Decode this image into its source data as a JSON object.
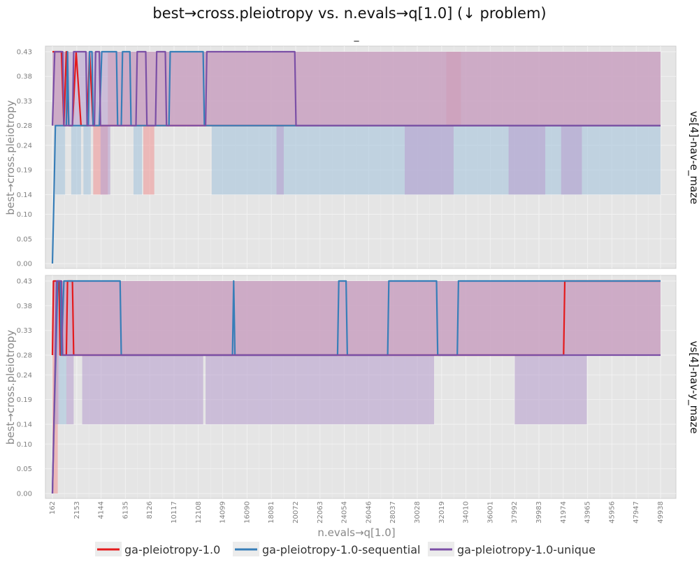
{
  "title": "best→cross.pleiotropy vs. n.evals→q[1.0] (↓ problem)",
  "subtitle": "_",
  "xlabel": "n.evals→q[1.0]",
  "ylabel": "best→cross.pleiotropy",
  "colors": {
    "panel_bg": "#e5e5e5",
    "grid": "#f2f2f2",
    "tick_text": "#7f7f7f",
    "series": [
      "#e41a1c",
      "#377eb8",
      "#7b4fa6"
    ],
    "band_fill": [
      "#ef9a9a",
      "#a6c4dc",
      "#b9a1cf"
    ]
  },
  "legend": {
    "position": "bottom",
    "items": [
      "ga-pleiotropy-1.0",
      "ga-pleiotropy-1.0-sequential",
      "ga-pleiotropy-1.0-unique"
    ]
  },
  "chart_data": {
    "type": "line",
    "xticks": [
      162,
      2153,
      4144,
      6135,
      8126,
      10117,
      12108,
      14099,
      16090,
      18081,
      20072,
      22063,
      24054,
      26046,
      28037,
      30028,
      32019,
      34010,
      36001,
      37992,
      39983,
      41974,
      43965,
      45956,
      47947,
      49938
    ],
    "xlim": [
      162,
      49938
    ],
    "yticks": [
      "0.00",
      "0.05",
      "0.10",
      "0.14",
      "0.19",
      "0.24",
      "0.28",
      "0.33",
      "0.38",
      "0.43"
    ],
    "ylim": [
      0,
      0.43
    ],
    "grid": true,
    "panels": [
      {
        "facet_label": "vs[4]-nav-e_maze",
        "series": [
          {
            "name": "ga-pleiotropy-1.0",
            "line": [
              [
                162,
                0.43
              ],
              [
                300,
                0.43
              ],
              [
                500,
                0.43
              ],
              [
                900,
                0.43
              ],
              [
                1100,
                0.28
              ],
              [
                1300,
                0.43
              ],
              [
                1500,
                0.28
              ],
              [
                1800,
                0.28
              ],
              [
                2100,
                0.43
              ],
              [
                2500,
                0.28
              ],
              [
                3000,
                0.28
              ],
              [
                3200,
                0.43
              ],
              [
                3500,
                0.28
              ],
              [
                4200,
                0.28
              ],
              [
                4500,
                0.28
              ],
              [
                5500,
                0.28
              ],
              [
                6500,
                0.28
              ],
              [
                7500,
                0.28
              ],
              [
                8500,
                0.28
              ],
              [
                9500,
                0.28
              ],
              [
                10500,
                0.28
              ],
              [
                11500,
                0.28
              ],
              [
                12500,
                0.28
              ],
              [
                13500,
                0.28
              ],
              [
                20000,
                0.28
              ],
              [
                49938,
                0.28
              ]
            ],
            "bands": [
              {
                "x": [
                  162,
                  800
                ],
                "low": 0.28,
                "high": 0.43
              },
              {
                "x": [
                  800,
                  1500
                ],
                "low": 0.28,
                "high": 0.43
              },
              {
                "x": [
                  3500,
                  4700
                ],
                "low": 0.14,
                "high": 0.28
              },
              {
                "x": [
                  7600,
                  8500
                ],
                "low": 0.14,
                "high": 0.28
              },
              {
                "x": [
                  4700,
                  49938
                ],
                "low": 0.28,
                "high": 0.43
              }
            ],
            "extra_bands": [
              {
                "x": [
                  32400,
                  33600
                ],
                "low": 0.28,
                "high": 0.43
              }
            ]
          },
          {
            "name": "ga-pleiotropy-1.0-sequential",
            "line": [
              [
                162,
                0.0
              ],
              [
                300,
                0.15
              ],
              [
                400,
                0.28
              ],
              [
                1300,
                0.28
              ],
              [
                1400,
                0.43
              ],
              [
                1500,
                0.28
              ],
              [
                3100,
                0.28
              ],
              [
                3200,
                0.43
              ],
              [
                3400,
                0.43
              ],
              [
                3500,
                0.28
              ],
              [
                4000,
                0.28
              ],
              [
                4200,
                0.43
              ],
              [
                5400,
                0.43
              ],
              [
                5500,
                0.28
              ],
              [
                5800,
                0.28
              ],
              [
                5900,
                0.43
              ],
              [
                6500,
                0.43
              ],
              [
                6600,
                0.28
              ],
              [
                9700,
                0.28
              ],
              [
                9800,
                0.43
              ],
              [
                12500,
                0.43
              ],
              [
                12600,
                0.28
              ],
              [
                49938,
                0.28
              ]
            ],
            "bands": [
              {
                "x": [
                  400,
                  1200
                ],
                "low": 0.14,
                "high": 0.28
              },
              {
                "x": [
                  1700,
                  2500
                ],
                "low": 0.14,
                "high": 0.28
              },
              {
                "x": [
                  2700,
                  3300
                ],
                "low": 0.14,
                "high": 0.28
              },
              {
                "x": [
                  6800,
                  7500
                ],
                "low": 0.14,
                "high": 0.28
              },
              {
                "x": [
                  13200,
                  49938
                ],
                "low": 0.14,
                "high": 0.28
              }
            ],
            "extra_bands": []
          },
          {
            "name": "ga-pleiotropy-1.0-unique",
            "line": [
              [
                162,
                0.28
              ],
              [
                350,
                0.43
              ],
              [
                1000,
                0.43
              ],
              [
                1100,
                0.28
              ],
              [
                1800,
                0.28
              ],
              [
                1900,
                0.43
              ],
              [
                2900,
                0.43
              ],
              [
                3000,
                0.28
              ],
              [
                3600,
                0.28
              ],
              [
                3700,
                0.43
              ],
              [
                4000,
                0.43
              ],
              [
                4100,
                0.28
              ],
              [
                7000,
                0.28
              ],
              [
                7100,
                0.43
              ],
              [
                7800,
                0.43
              ],
              [
                7900,
                0.28
              ],
              [
                8600,
                0.28
              ],
              [
                8700,
                0.43
              ],
              [
                9400,
                0.43
              ],
              [
                9500,
                0.28
              ],
              [
                12700,
                0.28
              ],
              [
                12800,
                0.43
              ],
              [
                20000,
                0.43
              ],
              [
                20100,
                0.28
              ],
              [
                49938,
                0.28
              ]
            ],
            "bands": [
              {
                "x": [
                  162,
                  49938
                ],
                "low": 0.28,
                "high": 0.43
              },
              {
                "x": [
                  4100,
                  4900
                ],
                "low": 0.14,
                "high": 0.28
              },
              {
                "x": [
                  18500,
                  19100
                ],
                "low": 0.14,
                "high": 0.28
              },
              {
                "x": [
                  29000,
                  33000
                ],
                "low": 0.14,
                "high": 0.28
              },
              {
                "x": [
                  37500,
                  40500
                ],
                "low": 0.14,
                "high": 0.28
              },
              {
                "x": [
                  41800,
                  43500
                ],
                "low": 0.14,
                "high": 0.28
              }
            ],
            "extra_bands": []
          }
        ]
      },
      {
        "facet_label": "vs[4]-nav-y_maze",
        "series": [
          {
            "name": "ga-pleiotropy-1.0",
            "line": [
              [
                162,
                0.28
              ],
              [
                250,
                0.43
              ],
              [
                700,
                0.43
              ],
              [
                800,
                0.28
              ],
              [
                1300,
                0.28
              ],
              [
                1400,
                0.43
              ],
              [
                1800,
                0.43
              ],
              [
                1900,
                0.28
              ],
              [
                42000,
                0.28
              ],
              [
                42100,
                0.43
              ],
              [
                49938,
                0.43
              ]
            ],
            "bands": [
              {
                "x": [
                  162,
                  600
                ],
                "low": 0.0,
                "high": 0.43
              },
              {
                "x": [
                  600,
                  49938
                ],
                "low": 0.28,
                "high": 0.43
              }
            ],
            "extra_bands": []
          },
          {
            "name": "ga-pleiotropy-1.0-sequential",
            "line": [
              [
                162,
                0.0
              ],
              [
                350,
                0.2
              ],
              [
                600,
                0.43
              ],
              [
                800,
                0.43
              ],
              [
                900,
                0.28
              ],
              [
                1100,
                0.43
              ],
              [
                5700,
                0.43
              ],
              [
                5800,
                0.28
              ],
              [
                14900,
                0.28
              ],
              [
                15000,
                0.43
              ],
              [
                15100,
                0.28
              ],
              [
                23500,
                0.28
              ],
              [
                23600,
                0.43
              ],
              [
                24200,
                0.43
              ],
              [
                24300,
                0.28
              ],
              [
                27600,
                0.28
              ],
              [
                27700,
                0.43
              ],
              [
                31600,
                0.43
              ],
              [
                31700,
                0.28
              ],
              [
                33300,
                0.28
              ],
              [
                33400,
                0.43
              ],
              [
                49938,
                0.43
              ]
            ],
            "bands": [
              {
                "x": [
                  700,
                  1300
                ],
                "low": 0.14,
                "high": 0.28
              }
            ],
            "extra_bands": []
          },
          {
            "name": "ga-pleiotropy-1.0-unique",
            "line": [
              [
                162,
                0.0
              ],
              [
                400,
                0.28
              ],
              [
                500,
                0.43
              ],
              [
                900,
                0.43
              ],
              [
                1000,
                0.28
              ],
              [
                49938,
                0.28
              ]
            ],
            "bands": [
              {
                "x": [
                  162,
                  49938
                ],
                "low": 0.28,
                "high": 0.43
              },
              {
                "x": [
                  400,
                  700
                ],
                "low": 0.14,
                "high": 0.28
              },
              {
                "x": [
                  1300,
                  1900
                ],
                "low": 0.14,
                "high": 0.28
              },
              {
                "x": [
                  2600,
                  12500
                ],
                "low": 0.14,
                "high": 0.28
              },
              {
                "x": [
                  12700,
                  31400
                ],
                "low": 0.14,
                "high": 0.28
              },
              {
                "x": [
                  38000,
                  43900
                ],
                "low": 0.14,
                "high": 0.28
              }
            ],
            "extra_bands": []
          }
        ]
      }
    ]
  }
}
